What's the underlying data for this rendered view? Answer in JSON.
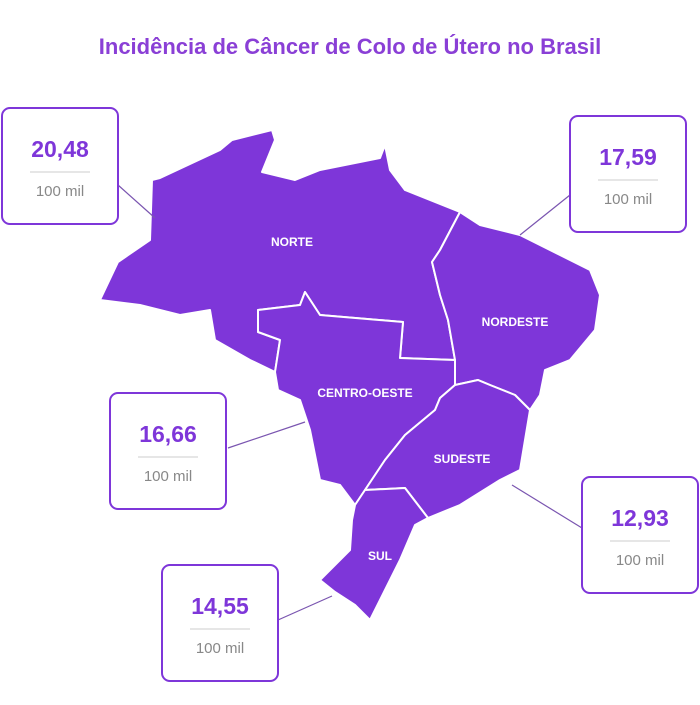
{
  "title": "Incidência de Câncer de Colo de Útero no Brasil",
  "regions": [
    {
      "name": "NORTE",
      "value": "20,48",
      "unit": "100 mil"
    },
    {
      "name": "NORDESTE",
      "value": "17,59",
      "unit": "100 mil"
    },
    {
      "name": "CENTRO-OESTE",
      "value": "16,66",
      "unit": "100 mil"
    },
    {
      "name": "SUDESTE",
      "value": "12,93",
      "unit": "100 mil"
    },
    {
      "name": "SUL",
      "value": "14,55",
      "unit": "100 mil"
    }
  ]
}
